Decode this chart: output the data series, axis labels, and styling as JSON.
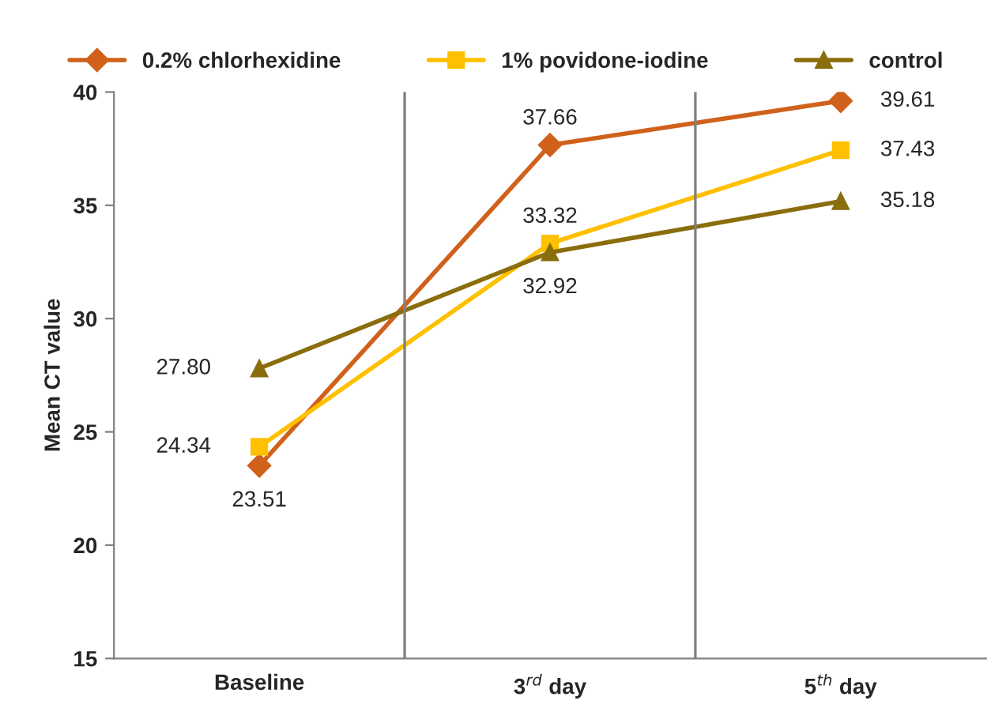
{
  "chart_data": {
    "type": "line",
    "ylabel": "Mean CT value",
    "categories": [
      "Baseline",
      "3$^{rd}$ day",
      "5$^{th}$ day"
    ],
    "series": [
      {
        "name": "0.2% chlorhexidine",
        "color": "#d0611b",
        "marker": "diamond",
        "values": [
          23.51,
          37.66,
          39.61
        ],
        "value_labels": [
          "23.51",
          "37.66",
          "39.61"
        ]
      },
      {
        "name": "1% povidone-iodine",
        "color": "#ffc000",
        "marker": "square",
        "values": [
          24.34,
          33.32,
          37.43
        ],
        "value_labels": [
          "24.34",
          "33.32",
          "37.43"
        ]
      },
      {
        "name": "control",
        "color": "#8a6d0c",
        "marker": "triangle",
        "values": [
          27.8,
          32.92,
          35.18
        ],
        "value_labels": [
          "27.80",
          "32.92",
          "35.18"
        ]
      }
    ],
    "ylim": [
      15,
      40
    ],
    "yticks": [
      15,
      20,
      25,
      30,
      35,
      40
    ],
    "grid": "x",
    "legend": "top",
    "line_style": "solid"
  }
}
